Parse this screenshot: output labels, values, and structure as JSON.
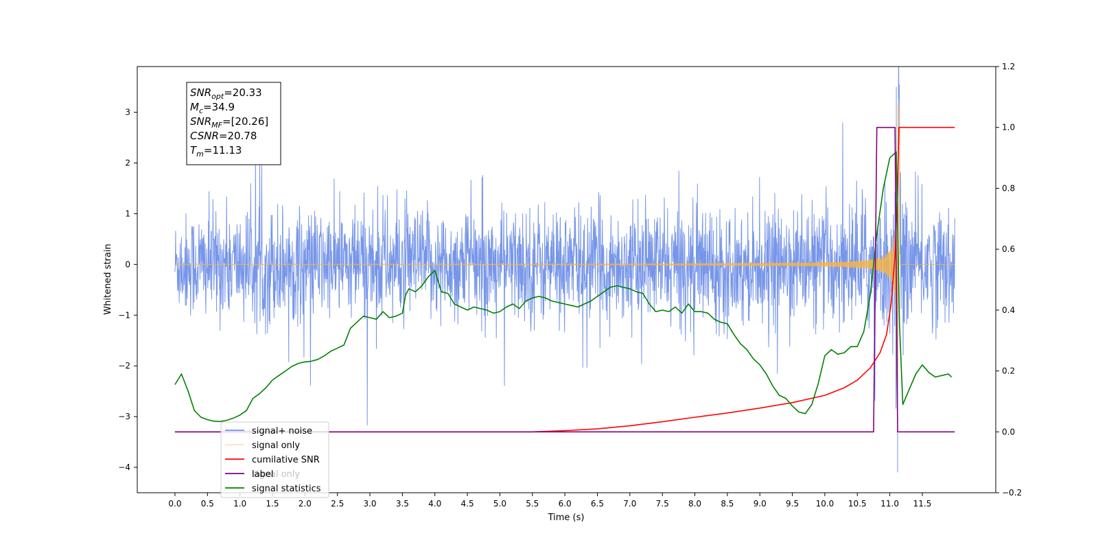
{
  "chart_data": {
    "type": "line",
    "xlabel": "Time (s)",
    "ylabel_left": "Whitened strain",
    "ylabel_right": "",
    "xlim": [
      -0.58,
      12.63
    ],
    "ylim_left": [
      -4.5,
      3.9
    ],
    "ylim_right": [
      -0.2,
      1.2
    ],
    "x_ticks": [
      "0.0",
      "0.5",
      "1.0",
      "1.5",
      "2.0",
      "2.5",
      "3.0",
      "3.5",
      "4.0",
      "4.5",
      "5.0",
      "5.5",
      "6.0",
      "6.5",
      "7.0",
      "7.5",
      "8.0",
      "8.5",
      "9.0",
      "9.5",
      "10.0",
      "10.5",
      "11.0",
      "11.5"
    ],
    "y_ticks_left": [
      "3",
      "2",
      "1",
      "0",
      "−1",
      "−2",
      "−3",
      "−4"
    ],
    "y_ticks_right": [
      "1.2",
      "1.0",
      "0.8",
      "0.6",
      "0.4",
      "0.2",
      "0.0",
      "−0.2"
    ],
    "grid": false,
    "legend_position": "lower-left",
    "annotation": {
      "lines": [
        {
          "main": "SNR",
          "sub": "opt",
          "rest": "=20.33"
        },
        {
          "main": "M",
          "sub": "c",
          "rest": "=34.9"
        },
        {
          "main": "SNR",
          "sub": "MF",
          "rest": "=[20.26]"
        },
        {
          "main": "CSNR",
          "sub": "",
          "rest": "=20.78"
        },
        {
          "main": "T",
          "sub": "m",
          "rest": "=11.13"
        }
      ]
    },
    "series": [
      {
        "name": "signal+ noise",
        "color": "#7090e8",
        "axis": "left",
        "description": "whitened noise band with spikes",
        "x_range": [
          0.0,
          12.0
        ],
        "envelope_upper": [
          1.2,
          1.4,
          1.3,
          1.5,
          1.4,
          1.3,
          1.5,
          1.4,
          1.3,
          1.4,
          1.3,
          1.5,
          1.4,
          1.4,
          1.3,
          1.4,
          1.5,
          1.4,
          1.3,
          1.4,
          1.4,
          1.6,
          1.8,
          1.6,
          1.3
        ],
        "spike_max": 2.85,
        "spike_min": -4.1,
        "merger_peak": [
          11.1,
          3.5
        ]
      },
      {
        "name": "signal only",
        "color": "#f5b54a",
        "axis": "left",
        "description": "chirp signal",
        "x_range": [
          0.0,
          12.0
        ],
        "merger_time": 11.13,
        "peak_amplitude": 3.3
      },
      {
        "name": "cumilative SNR",
        "color": "#ff0000",
        "axis": "right",
        "x": [
          0.0,
          5.5,
          6.0,
          6.5,
          7.0,
          7.5,
          8.0,
          8.5,
          9.0,
          9.5,
          10.0,
          10.3,
          10.5,
          10.7,
          10.85,
          10.95,
          11.02,
          11.08,
          11.12,
          11.14,
          11.2,
          12.0
        ],
        "values": [
          0.0,
          0.0,
          0.004,
          0.01,
          0.02,
          0.033,
          0.048,
          0.062,
          0.078,
          0.096,
          0.12,
          0.145,
          0.17,
          0.21,
          0.26,
          0.32,
          0.42,
          0.58,
          0.8,
          1.0,
          1.0,
          1.0
        ]
      },
      {
        "name": "label",
        "color": "#800080",
        "axis": "right",
        "x": [
          0.0,
          10.75,
          10.8,
          11.08,
          11.12,
          12.0
        ],
        "values": [
          0.0,
          0.0,
          1.0,
          1.0,
          0.0,
          0.0
        ]
      },
      {
        "name": "signal statistics",
        "color": "#008000",
        "axis": "right",
        "x": [
          0.0,
          0.1,
          0.2,
          0.3,
          0.4,
          0.5,
          0.6,
          0.7,
          0.8,
          0.9,
          1.0,
          1.1,
          1.2,
          1.3,
          1.4,
          1.5,
          1.6,
          1.7,
          1.8,
          1.9,
          2.0,
          2.1,
          2.2,
          2.3,
          2.4,
          2.5,
          2.6,
          2.7,
          2.8,
          2.9,
          3.0,
          3.1,
          3.2,
          3.3,
          3.4,
          3.5,
          3.55,
          3.6,
          3.7,
          3.8,
          3.9,
          4.0,
          4.1,
          4.2,
          4.3,
          4.4,
          4.5,
          4.6,
          4.7,
          4.8,
          4.9,
          5.0,
          5.1,
          5.2,
          5.3,
          5.4,
          5.5,
          5.6,
          5.7,
          5.8,
          5.9,
          6.0,
          6.1,
          6.2,
          6.3,
          6.4,
          6.5,
          6.6,
          6.7,
          6.8,
          6.9,
          7.0,
          7.1,
          7.2,
          7.3,
          7.4,
          7.5,
          7.6,
          7.7,
          7.8,
          7.9,
          8.0,
          8.1,
          8.2,
          8.3,
          8.4,
          8.5,
          8.6,
          8.7,
          8.8,
          8.9,
          9.0,
          9.1,
          9.2,
          9.3,
          9.4,
          9.5,
          9.6,
          9.7,
          9.8,
          9.9,
          10.0,
          10.1,
          10.2,
          10.3,
          10.4,
          10.5,
          10.6,
          10.7,
          10.8,
          10.9,
          11.0,
          11.1,
          11.15,
          11.2,
          11.3,
          11.4,
          11.5,
          11.6,
          11.7,
          11.8,
          11.9,
          11.95
        ],
        "values": [
          0.155,
          0.19,
          0.135,
          0.07,
          0.048,
          0.04,
          0.035,
          0.034,
          0.038,
          0.045,
          0.055,
          0.07,
          0.11,
          0.125,
          0.145,
          0.17,
          0.185,
          0.2,
          0.215,
          0.225,
          0.23,
          0.232,
          0.238,
          0.25,
          0.265,
          0.275,
          0.285,
          0.34,
          0.36,
          0.38,
          0.375,
          0.37,
          0.395,
          0.375,
          0.38,
          0.39,
          0.45,
          0.47,
          0.46,
          0.48,
          0.51,
          0.53,
          0.46,
          0.455,
          0.42,
          0.41,
          0.4,
          0.41,
          0.405,
          0.4,
          0.39,
          0.395,
          0.41,
          0.42,
          0.405,
          0.43,
          0.44,
          0.445,
          0.44,
          0.43,
          0.425,
          0.42,
          0.415,
          0.41,
          0.42,
          0.43,
          0.445,
          0.46,
          0.475,
          0.48,
          0.475,
          0.47,
          0.46,
          0.455,
          0.42,
          0.395,
          0.4,
          0.395,
          0.41,
          0.39,
          0.42,
          0.395,
          0.395,
          0.39,
          0.37,
          0.36,
          0.355,
          0.32,
          0.29,
          0.27,
          0.24,
          0.22,
          0.19,
          0.15,
          0.12,
          0.11,
          0.085,
          0.065,
          0.06,
          0.09,
          0.16,
          0.25,
          0.27,
          0.255,
          0.26,
          0.28,
          0.28,
          0.33,
          0.45,
          0.65,
          0.8,
          0.9,
          0.92,
          0.35,
          0.09,
          0.14,
          0.19,
          0.22,
          0.195,
          0.18,
          0.185,
          0.19,
          0.18
        ]
      }
    ],
    "legend_entries": [
      "signal+ noise",
      "signal only",
      "cumilative SNR",
      "label",
      "signal statistics"
    ],
    "legend_ghost_labels": [
      "signal only"
    ]
  }
}
